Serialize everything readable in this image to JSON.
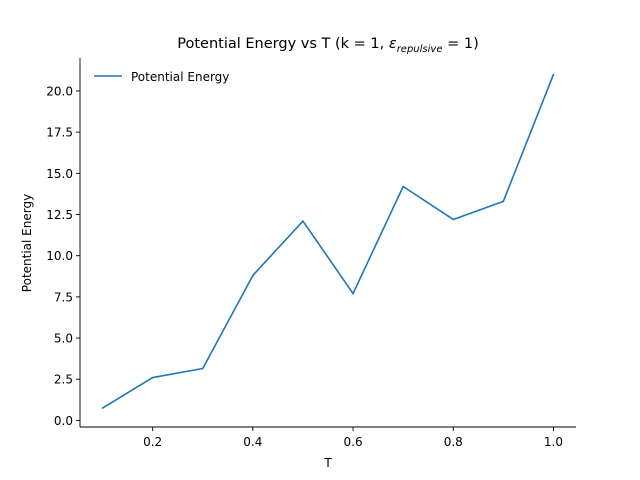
{
  "chart_data": {
    "type": "line",
    "title_main": "Potential Energy vs T (k = 1, ",
    "title_symbol": "ε",
    "title_subscript": "repulsive",
    "title_end": " = 1)",
    "xlabel": "T",
    "ylabel": "Potential Energy",
    "xlim": [
      0.055,
      1.045
    ],
    "ylim": [
      -0.4,
      22.0
    ],
    "xticks": [
      0.2,
      0.4,
      0.6,
      0.8,
      1.0
    ],
    "xtick_labels": [
      "0.2",
      "0.4",
      "0.6",
      "0.8",
      "1.0"
    ],
    "yticks": [
      0.0,
      2.5,
      5.0,
      7.5,
      10.0,
      12.5,
      15.0,
      17.5,
      20.0
    ],
    "ytick_labels": [
      "0.0",
      "2.5",
      "5.0",
      "7.5",
      "10.0",
      "12.5",
      "15.0",
      "17.5",
      "20.0"
    ],
    "grid": false,
    "legend_position": "top-left",
    "series": [
      {
        "name": "Potential Energy",
        "color": "#1f77b4",
        "x": [
          0.1,
          0.2,
          0.3,
          0.4,
          0.5,
          0.6,
          0.7,
          0.8,
          0.9,
          1.0
        ],
        "y": [
          0.75,
          2.6,
          3.15,
          8.8,
          12.1,
          7.7,
          14.2,
          12.2,
          13.3,
          21.0
        ]
      }
    ]
  }
}
